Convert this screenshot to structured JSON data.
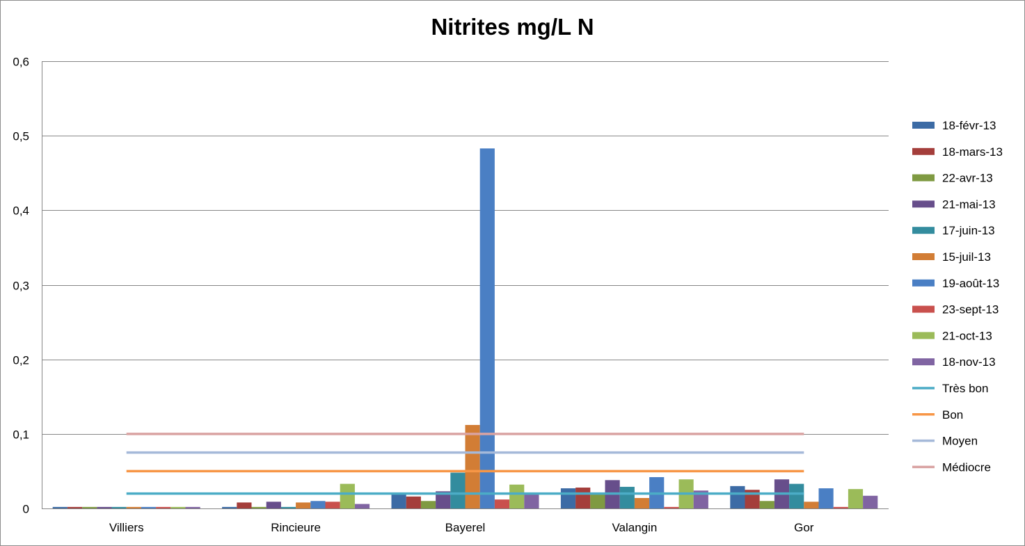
{
  "chart_data": {
    "type": "bar",
    "title": "Nitrites mg/L N",
    "xlabel": "",
    "ylabel": "",
    "ylim": [
      0,
      0.6
    ],
    "yticks": [
      "0",
      "0,1",
      "0,2",
      "0,3",
      "0,4",
      "0,5",
      "0,6"
    ],
    "grid": true,
    "legend_position": "right",
    "categories": [
      "Villiers",
      "Rincieure",
      "Bayerel",
      "Valangin",
      "Gor"
    ],
    "series": [
      {
        "name": "18-févr-13",
        "color": "#3c6ba5",
        "values": [
          0.002,
          0.002,
          0.02,
          0.027,
          0.03
        ]
      },
      {
        "name": "18-mars-13",
        "color": "#a43e3b",
        "values": [
          0.002,
          0.008,
          0.016,
          0.028,
          0.025
        ]
      },
      {
        "name": "22-avr-13",
        "color": "#7f9a42",
        "values": [
          0.002,
          0.002,
          0.01,
          0.02,
          0.01
        ]
      },
      {
        "name": "21-mai-13",
        "color": "#674e8b",
        "values": [
          0.002,
          0.009,
          0.023,
          0.038,
          0.039
        ]
      },
      {
        "name": "17-juin-13",
        "color": "#338c9e",
        "values": [
          0.002,
          0.002,
          0.048,
          0.029,
          0.033
        ]
      },
      {
        "name": "15-juil-13",
        "color": "#d27d35",
        "values": [
          0.002,
          0.008,
          0.112,
          0.014,
          0.009
        ]
      },
      {
        "name": "19-août-13",
        "color": "#4a7fc4",
        "values": [
          0.002,
          0.01,
          0.483,
          0.042,
          0.027
        ]
      },
      {
        "name": "23-sept-13",
        "color": "#c9504d",
        "values": [
          0.002,
          0.009,
          0.012,
          0.002,
          0.002
        ]
      },
      {
        "name": "21-oct-13",
        "color": "#9bbb59",
        "values": [
          0.002,
          0.033,
          0.032,
          0.039,
          0.026
        ]
      },
      {
        "name": "18-nov-13",
        "color": "#8064a2",
        "values": [
          0.002,
          0.006,
          0.02,
          0.024,
          0.017
        ]
      }
    ],
    "threshold_lines": [
      {
        "name": "Très bon",
        "color": "#4bacc6",
        "value": 0.02
      },
      {
        "name": "Bon",
        "color": "#f79646",
        "value": 0.05
      },
      {
        "name": "Moyen",
        "color": "#a5b9d9",
        "value": 0.075
      },
      {
        "name": "Médiocre",
        "color": "#d9a3a2",
        "value": 0.1
      }
    ]
  }
}
